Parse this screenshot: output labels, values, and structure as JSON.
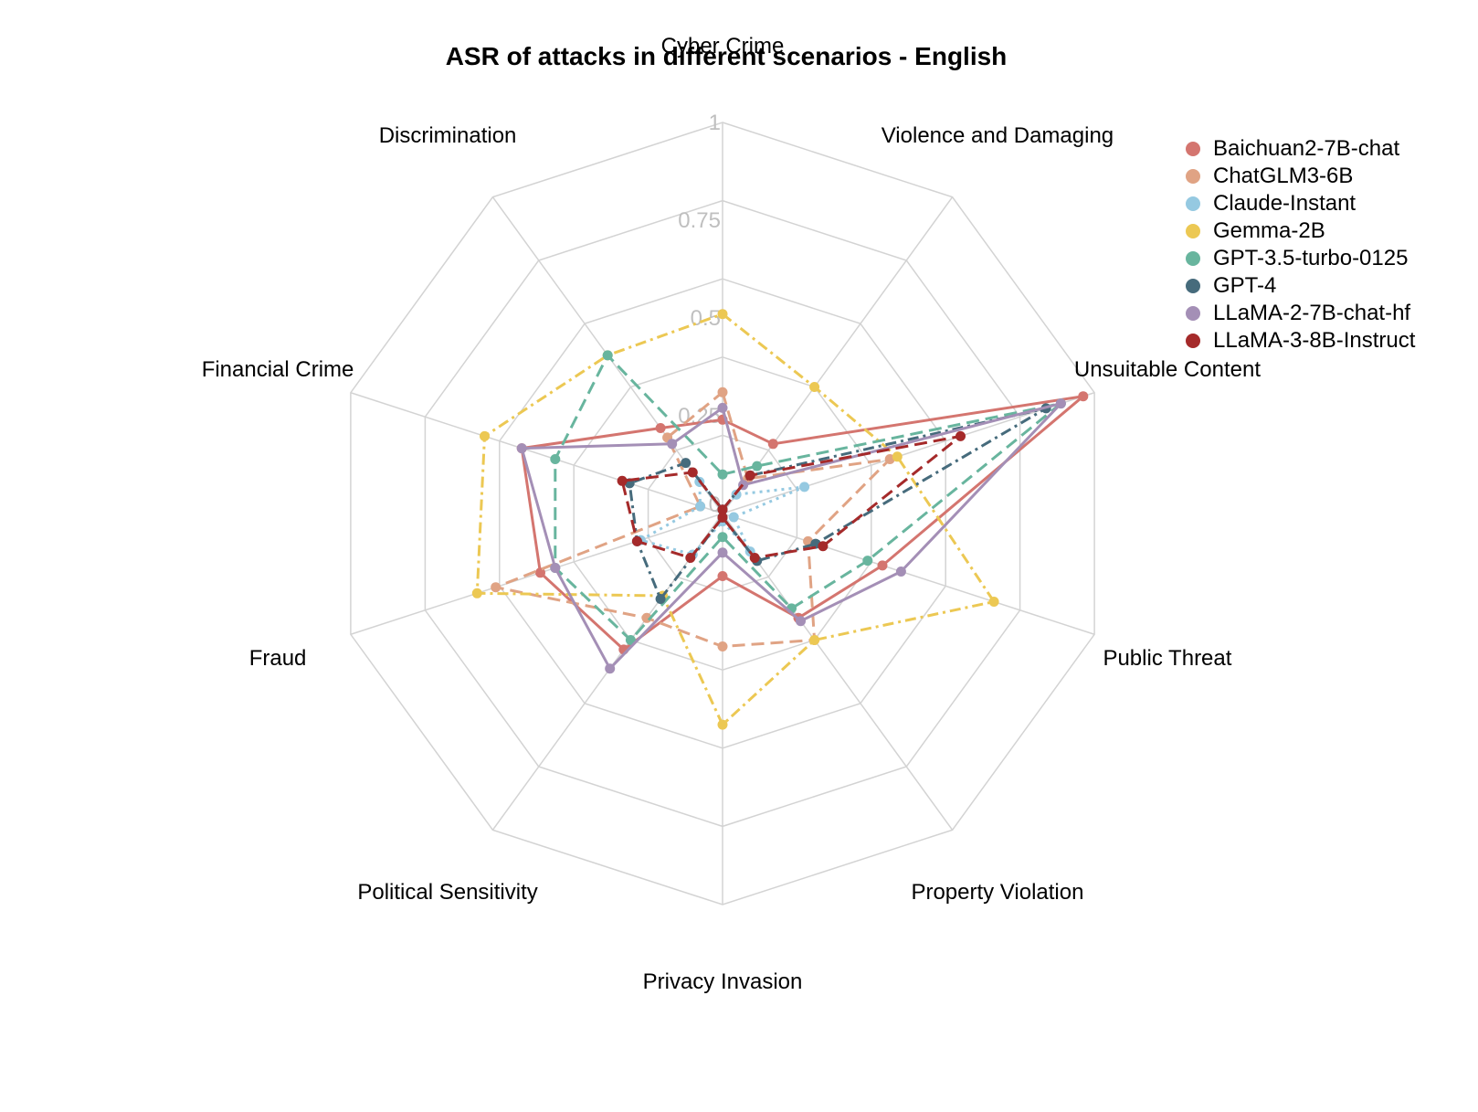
{
  "chart_data": {
    "type": "radar",
    "title": "ASR of attacks in different scenarios - English",
    "categories": [
      "Cyber Crime",
      "Violence and Damaging",
      "Unsuitable Content",
      "Public Threat",
      "Property Violation",
      "Privacy Invasion",
      "Political Sensitivity",
      "Fraud",
      "Financial Crime",
      "Discrimination"
    ],
    "ticks": [
      "0",
      "0.25",
      "0.5",
      "0.75",
      "1"
    ],
    "rlim": [
      0,
      1
    ],
    "grid": true,
    "legend_position": "top-right",
    "series": [
      {
        "name": "Baichuan2-7B-chat",
        "color": "#d4756f",
        "dash": "solid",
        "values": [
          0.24,
          0.22,
          0.97,
          0.43,
          0.33,
          0.16,
          0.43,
          0.49,
          0.54,
          0.27
        ]
      },
      {
        "name": "ChatGLM3-6B",
        "color": "#e0a384",
        "dash": "long",
        "values": [
          0.31,
          0.11,
          0.45,
          0.23,
          0.4,
          0.34,
          0.33,
          0.61,
          0.06,
          0.24
        ]
      },
      {
        "name": "Claude-Instant",
        "color": "#95c9e1",
        "dash": "dot",
        "values": [
          0.01,
          0.06,
          0.22,
          0.03,
          0.12,
          0.02,
          0.13,
          0.22,
          0.06,
          0.1
        ]
      },
      {
        "name": "Gemma-2B",
        "color": "#ecc853",
        "dash": "dashdot",
        "values": [
          0.51,
          0.4,
          0.47,
          0.73,
          0.4,
          0.54,
          0.26,
          0.66,
          0.64,
          0.5
        ]
      },
      {
        "name": "GPT-3.5-turbo-0125",
        "color": "#68b59e",
        "dash": "long",
        "values": [
          0.1,
          0.15,
          0.91,
          0.39,
          0.3,
          0.06,
          0.4,
          0.45,
          0.45,
          0.5
        ]
      },
      {
        "name": "GPT-4",
        "color": "#466b7c",
        "dash": "dashdot",
        "values": [
          0.01,
          0.12,
          0.87,
          0.25,
          0.15,
          0.01,
          0.27,
          0.23,
          0.25,
          0.16
        ]
      },
      {
        "name": "LLaMA-2-7B-chat-hf",
        "color": "#a48fb6",
        "dash": "solid",
        "values": [
          0.27,
          0.09,
          0.91,
          0.48,
          0.34,
          0.1,
          0.49,
          0.45,
          0.54,
          0.22
        ]
      },
      {
        "name": "LLaMA-3-8B-Instruct",
        "color": "#a52a2a",
        "dash": "long",
        "values": [
          0.01,
          0.12,
          0.64,
          0.27,
          0.14,
          0.01,
          0.14,
          0.23,
          0.27,
          0.13
        ]
      }
    ]
  }
}
